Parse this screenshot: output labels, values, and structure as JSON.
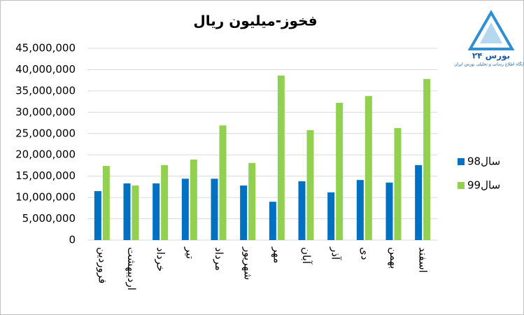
{
  "chart_data": {
    "type": "bar",
    "title": "فخوز-میلیون ریال",
    "categories": [
      "فروردین",
      "اردیبهشت",
      "خرداد",
      "تیر",
      "مرداد",
      "شهریور",
      "مهر",
      "آبان",
      "آذر",
      "دی",
      "بهمن",
      "اسفند"
    ],
    "series": [
      {
        "name": "سال98",
        "color": "#0070c0",
        "values": [
          11500000,
          13300000,
          13300000,
          14400000,
          14400000,
          12800000,
          9000000,
          13800000,
          11200000,
          14100000,
          13500000,
          17600000
        ]
      },
      {
        "name": "سال99",
        "color": "#92d050",
        "values": [
          17400000,
          12800000,
          17600000,
          18900000,
          26900000,
          18100000,
          38600000,
          25800000,
          32200000,
          33800000,
          26300000,
          37800000
        ]
      }
    ],
    "ylim": [
      0,
      45000000
    ],
    "yticks": [
      {
        "value": 0,
        "label": "0"
      },
      {
        "value": 5000000,
        "label": "5,000,000"
      },
      {
        "value": 10000000,
        "label": "10,000,000"
      },
      {
        "value": 15000000,
        "label": "15,000,000"
      },
      {
        "value": 20000000,
        "label": "20,000,000"
      },
      {
        "value": 25000000,
        "label": "25,000,000"
      },
      {
        "value": 30000000,
        "label": "30,000,000"
      },
      {
        "value": 35000000,
        "label": "35,000,000"
      },
      {
        "value": 40000000,
        "label": "40,000,000"
      },
      {
        "value": 45000000,
        "label": "45,000,000"
      }
    ],
    "grid": true,
    "legend": "right"
  },
  "logo": {
    "name": "بورس ۲۴",
    "tagline": "پایگاه اطلاع رسانی و تحلیلی بورس ایران"
  }
}
